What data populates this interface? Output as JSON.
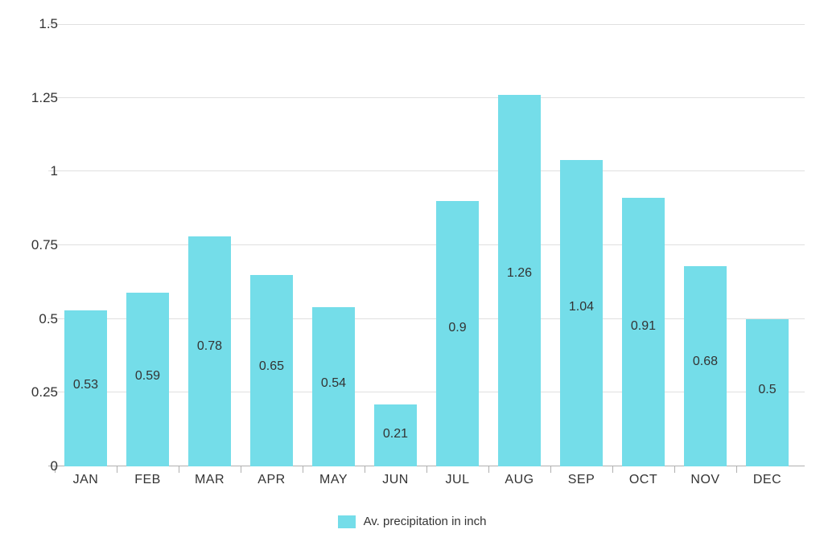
{
  "chart": {
    "type": "bar",
    "categories": [
      "JAN",
      "FEB",
      "MAR",
      "APR",
      "MAY",
      "JUN",
      "JUL",
      "AUG",
      "SEP",
      "OCT",
      "NOV",
      "DEC"
    ],
    "values": [
      0.53,
      0.59,
      0.78,
      0.65,
      0.54,
      0.21,
      0.9,
      1.26,
      1.04,
      0.91,
      0.68,
      0.5
    ],
    "value_labels": [
      "0.53",
      "0.59",
      "0.78",
      "0.65",
      "0.54",
      "0.21",
      "0.9",
      "1.26",
      "1.04",
      "0.91",
      "0.68",
      "0.5"
    ],
    "bar_color": "#74dde9",
    "ylim": [
      0,
      1.5
    ],
    "ytick_step": 0.25,
    "ytick_labels": [
      "0",
      "0.25",
      "0.5",
      "0.75",
      "1",
      "1.25",
      "1.5"
    ],
    "grid_color": "#e0e0e0",
    "baseline_color": "#b0b0b0",
    "background_color": "#ffffff",
    "tick_font_size": 17,
    "value_font_size": 16,
    "xlabel_font_size": 16,
    "legend_label": "Av. precipitation in inch",
    "legend_font_size": 15,
    "bar_width": 0.7,
    "text_color": "#333333"
  }
}
